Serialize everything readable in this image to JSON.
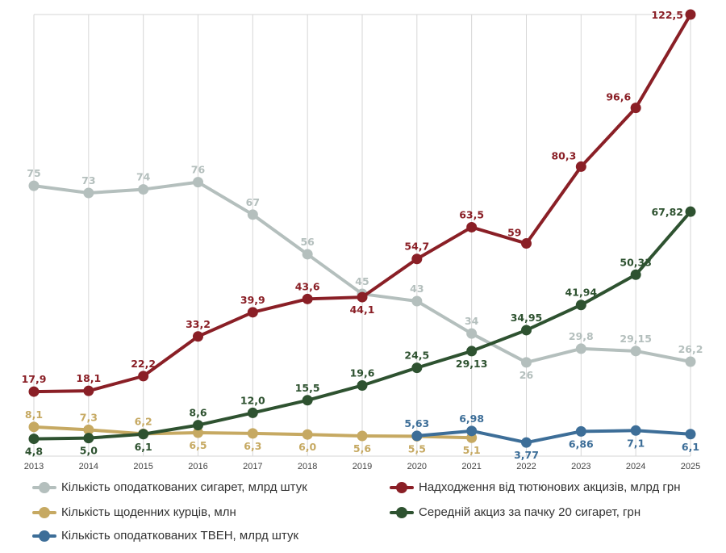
{
  "chart_data": {
    "type": "line",
    "x": [
      "2013",
      "2014",
      "2015",
      "2016",
      "2017",
      "2018",
      "2019",
      "2020",
      "2021",
      "2022",
      "2023",
      "2024",
      "2025"
    ],
    "ylim": [
      0,
      122.5
    ],
    "grid": "vertical",
    "legend_position": "bottom",
    "series": [
      {
        "name": "Кількість оподаткованих сигарет, млрд штук",
        "color": "#b4bfbd",
        "values": [
          75,
          73,
          74,
          76,
          67,
          56,
          45,
          43,
          34,
          26,
          29.8,
          29.15,
          26.2
        ],
        "labels": [
          "75",
          "73",
          "74",
          "76",
          "67",
          "56",
          "45",
          "43",
          "34",
          "26",
          "29,8",
          "29,15",
          "26,2"
        ]
      },
      {
        "name": "Надходження від тютюнових акцизів, млрд грн",
        "color": "#8a1f26",
        "values": [
          17.9,
          18.1,
          22.2,
          33.2,
          39.9,
          43.6,
          44.1,
          54.7,
          63.5,
          59,
          80.3,
          96.6,
          122.5
        ],
        "labels": [
          "17,9",
          "18,1",
          "22,2",
          "33,2",
          "39,9",
          "43,6",
          "44,1",
          "54,7",
          "63,5",
          "59",
          "80,3",
          "96,6",
          "122,5"
        ]
      },
      {
        "name": "Кількість щоденних курців, млн",
        "color": "#c6a962",
        "values": [
          8.1,
          7.3,
          6.2,
          6.5,
          6.3,
          6.0,
          5.6,
          5.5,
          5.1,
          null,
          null,
          null,
          null
        ],
        "labels": [
          "8,1",
          "7,3",
          "6,2",
          "6,5",
          "6,3",
          "6,0",
          "5,6",
          "5,5",
          "5,1",
          null,
          null,
          null,
          null
        ]
      },
      {
        "name": "Середній акциз за пачку 20 сигарет, грн",
        "color": "#2e5230",
        "values": [
          4.8,
          5.0,
          6.1,
          8.6,
          12.0,
          15.5,
          19.6,
          24.5,
          29.13,
          34.95,
          41.94,
          50.33,
          67.82
        ],
        "labels": [
          "4,8",
          "5,0",
          "6,1",
          "8,6",
          "12,0",
          "15,5",
          "19,6",
          "24,5",
          "29,13",
          "34,95",
          "41,94",
          "50,33",
          "67,82"
        ]
      },
      {
        "name": "Кількість оподаткованих ТВЕН, млрд штук",
        "color": "#3d6e98",
        "values": [
          null,
          null,
          null,
          null,
          null,
          null,
          null,
          5.63,
          6.98,
          3.77,
          6.86,
          7.1,
          6.1
        ],
        "labels": [
          null,
          null,
          null,
          null,
          null,
          null,
          null,
          "5,63",
          "6,98",
          "3,77",
          "6,86",
          "7,1",
          "6,1"
        ]
      }
    ]
  }
}
